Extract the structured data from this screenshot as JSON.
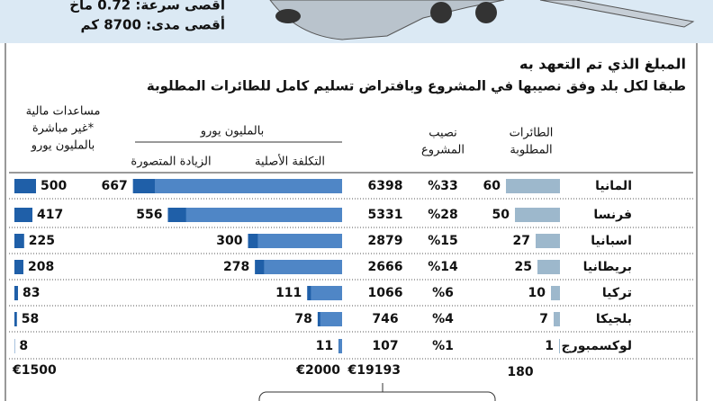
{
  "header": {
    "specs": [
      "أقصى سرعة: 0.72 ماخ",
      "أقصى مدى: 8700 كم"
    ]
  },
  "title": "المبلغ الذي تم التعهد به",
  "subtitle": "طبقا لكل بلد وفق نصيبها في المشروع وبافتراض تسليم كامل للطائرات المطلوبة",
  "columns": {
    "aircraft": [
      "الطائرات",
      "المطلوبة"
    ],
    "share": [
      "نصيب",
      "المشروع"
    ],
    "group": "بالمليون يورو",
    "cost": "التكلفة الأصلية",
    "increase": "الزيادة المتصورة",
    "aid": [
      "مساعدات مالية",
      "غير مباشرة*",
      "بالمليون يورو"
    ]
  },
  "rows": [
    {
      "country": "المانيا",
      "aircraft": 60,
      "share": "%33",
      "cost": 6398,
      "increase": 667,
      "aid": 500
    },
    {
      "country": "فرنسا",
      "aircraft": 50,
      "share": "%28",
      "cost": 5331,
      "increase": 556,
      "aid": 417
    },
    {
      "country": "اسبانيا",
      "aircraft": 27,
      "share": "%15",
      "cost": 2879,
      "increase": 300,
      "aid": 225
    },
    {
      "country": "بريطانيا",
      "aircraft": 25,
      "share": "%14",
      "cost": 2666,
      "increase": 278,
      "aid": 208
    },
    {
      "country": "تركيا",
      "aircraft": 10,
      "share": "%6",
      "cost": 1066,
      "increase": 111,
      "aid": 83
    },
    {
      "country": "بلجيكا",
      "aircraft": 7,
      "share": "%4",
      "cost": 746,
      "increase": 78,
      "aid": 58
    },
    {
      "country": "لوكسمبورج",
      "aircraft": 1,
      "share": "%1",
      "cost": 107,
      "increase": 11,
      "aid": 8
    }
  ],
  "totals": {
    "aid": "€1500",
    "increase": "€2000",
    "cost": "€19193",
    "aircraft": "180"
  }
}
